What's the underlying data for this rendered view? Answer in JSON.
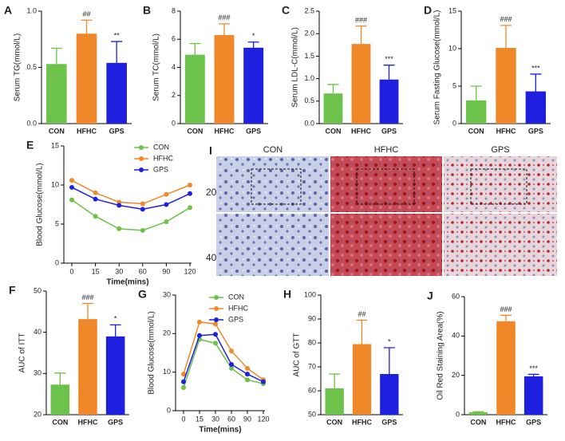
{
  "chart_data": [
    {
      "type": "bar",
      "panel": "A",
      "ylabel": "Serum TG(mmol/L)",
      "categories": [
        "CON",
        "HFHC",
        "GPS"
      ],
      "values": [
        0.53,
        0.8,
        0.54
      ],
      "errors": [
        0.14,
        0.12,
        0.19
      ],
      "annotations": [
        null,
        "##",
        "**"
      ],
      "colors": [
        "#6cc24a",
        "#f0882a",
        "#1f1fe0"
      ],
      "ylim": [
        0,
        1.0
      ],
      "yticks": [
        {
          "value": 0,
          "label": "0.0"
        },
        {
          "value": 0.5,
          "label": "0.5"
        },
        {
          "value": 1.0,
          "label": "1.0"
        }
      ]
    },
    {
      "type": "bar",
      "panel": "B",
      "ylabel": "Serum TC(mmol/L)",
      "categories": [
        "CON",
        "HFHC",
        "GPS"
      ],
      "values": [
        4.9,
        6.3,
        5.4
      ],
      "errors": [
        0.8,
        0.8,
        0.4
      ],
      "annotations": [
        null,
        "###",
        "*"
      ],
      "colors": [
        "#6cc24a",
        "#f0882a",
        "#1f1fe0"
      ],
      "ylim": [
        0,
        8
      ],
      "yticks": [
        0,
        2,
        4,
        6,
        8
      ]
    },
    {
      "type": "bar",
      "panel": "C",
      "ylabel": "Serum LDL-C(mmol/L)",
      "categories": [
        "CON",
        "HFHC",
        "GPS"
      ],
      "values": [
        0.67,
        1.77,
        0.98
      ],
      "errors": [
        0.2,
        0.4,
        0.32
      ],
      "annotations": [
        null,
        "###",
        "***"
      ],
      "colors": [
        "#6cc24a",
        "#f0882a",
        "#1f1fe0"
      ],
      "ylim": [
        0,
        2.5
      ],
      "yticks": [
        {
          "value": 0,
          "label": "0.0"
        },
        0.5,
        {
          "value": 1,
          "label": "1.0"
        },
        1.5,
        {
          "value": 2,
          "label": "2.0"
        },
        2.5
      ]
    },
    {
      "type": "bar",
      "panel": "D",
      "ylabel": "Serum Fasting Glucose(mmol/L)",
      "categories": [
        "CON",
        "HFHC",
        "GPS"
      ],
      "values": [
        3.1,
        10.1,
        4.3
      ],
      "errors": [
        1.9,
        3.0,
        2.3
      ],
      "annotations": [
        null,
        "###",
        "***"
      ],
      "colors": [
        "#6cc24a",
        "#f0882a",
        "#1f1fe0"
      ],
      "ylim": [
        0,
        15
      ],
      "yticks": [
        0,
        5,
        10,
        15
      ]
    },
    {
      "type": "line",
      "panel": "E",
      "ylabel": "Blood Glucose(mmol/L)",
      "xlabel": "Time(mins)",
      "x": [
        "0",
        "15",
        "30",
        "60",
        "90",
        "120"
      ],
      "ylim": [
        0,
        15
      ],
      "yticks": [
        0,
        5,
        10,
        15
      ],
      "series": [
        {
          "name": "CON",
          "color": "#6cc24a",
          "values": [
            8.1,
            6.0,
            4.4,
            4.2,
            5.3,
            7.1
          ]
        },
        {
          "name": "HFHC",
          "color": "#f0882a",
          "values": [
            10.6,
            9.0,
            7.8,
            7.6,
            8.8,
            10.0
          ]
        },
        {
          "name": "GPS",
          "color": "#1f1fe0",
          "values": [
            9.7,
            8.2,
            7.4,
            6.9,
            7.5,
            8.9
          ]
        }
      ]
    },
    {
      "type": "bar",
      "panel": "F",
      "ylabel": "AUC of ITT",
      "categories": [
        "CON",
        "HFHC",
        "GPS"
      ],
      "values": [
        27.3,
        43.2,
        39.0
      ],
      "errors": [
        2.8,
        3.8,
        2.8
      ],
      "annotations": [
        null,
        "###",
        "*"
      ],
      "colors": [
        "#6cc24a",
        "#f0882a",
        "#1f1fe0"
      ],
      "ylim": [
        20,
        50
      ],
      "yticks": [
        20,
        30,
        40,
        50
      ]
    },
    {
      "type": "line",
      "panel": "G",
      "ylabel": "Blood Glucose(mmol/L)",
      "xlabel": "Time(mins)",
      "x": [
        "0",
        "15",
        "30",
        "60",
        "90",
        "120"
      ],
      "ylim": [
        0,
        30
      ],
      "yticks": [
        0,
        10,
        20,
        30
      ],
      "series": [
        {
          "name": "CON",
          "color": "#6cc24a",
          "values": [
            6.0,
            18.5,
            17.5,
            11.0,
            8.0,
            7.0
          ]
        },
        {
          "name": "HFHC",
          "color": "#f0882a",
          "values": [
            9.5,
            23.0,
            22.5,
            15.5,
            11.0,
            8.0
          ]
        },
        {
          "name": "GPS",
          "color": "#1f1fe0",
          "values": [
            7.5,
            19.5,
            19.8,
            12.0,
            9.5,
            7.5
          ]
        }
      ]
    },
    {
      "type": "bar",
      "panel": "H",
      "ylabel": "AUC of GTT",
      "categories": [
        "CON",
        "HFHC",
        "GPS"
      ],
      "values": [
        61,
        79.5,
        67
      ],
      "errors": [
        6,
        10,
        11
      ],
      "annotations": [
        null,
        "##",
        "*"
      ],
      "colors": [
        "#6cc24a",
        "#f0882a",
        "#1f1fe0"
      ],
      "ylim": [
        50,
        100
      ],
      "yticks": [
        50,
        60,
        70,
        80,
        90,
        100
      ]
    },
    {
      "type": "bar",
      "panel": "J",
      "ylabel": "Oil Red Staining Area(%)",
      "categories": [
        "CON",
        "HFHC",
        "GPS"
      ],
      "values": [
        1.2,
        47.5,
        19.5
      ],
      "errors": [
        0.3,
        3.0,
        1.0
      ],
      "annotations": [
        null,
        "###",
        "***"
      ],
      "colors": [
        "#6cc24a",
        "#f0882a",
        "#1f1fe0"
      ],
      "ylim": [
        0,
        60
      ],
      "yticks": [
        0,
        20,
        40,
        60
      ]
    }
  ],
  "image_panel": {
    "panel": "I",
    "columns": [
      "CON",
      "HFHC",
      "GPS"
    ],
    "rows": [
      "20×",
      "40×"
    ]
  }
}
